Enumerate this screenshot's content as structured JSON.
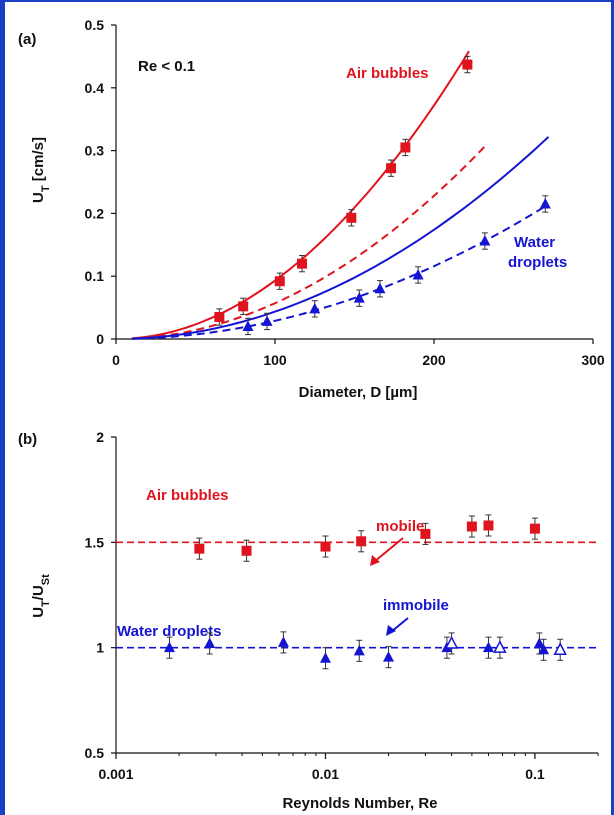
{
  "colors": {
    "red": "#e0141e",
    "blue": "#1414d2",
    "axis": "#111111",
    "frame": "#1a3fc4"
  },
  "chart_data": [
    {
      "panel": "(a)",
      "type": "scatter",
      "xlabel": "Diameter, D [µm]",
      "ylabel": "U",
      "ylabel_sub": "T",
      "ylabel_unit": " [cm/s]",
      "xlim": [
        0,
        300
      ],
      "ylim": [
        0,
        0.5
      ],
      "xticks": [
        0,
        100,
        200,
        300
      ],
      "yticks": [
        0,
        0.1,
        0.2,
        0.3,
        0.4,
        0.5
      ],
      "xtick_labels": [
        "0",
        "100",
        "200",
        "300"
      ],
      "ytick_labels": [
        "0",
        "0.1",
        "0.2",
        "0.3",
        "0.4",
        "0.5"
      ],
      "annotation": "Re < 0.1",
      "series": [
        {
          "name": "Air bubbles",
          "color": "red",
          "marker": "square",
          "x": [
            65,
            80,
            103,
            117,
            148,
            173,
            182,
            221
          ],
          "y": [
            0.035,
            0.052,
            0.092,
            0.12,
            0.193,
            0.272,
            0.305,
            0.437
          ],
          "err": [
            0.013,
            0.013,
            0.013,
            0.013,
            0.013,
            0.013,
            0.013,
            0.013
          ]
        },
        {
          "name": "Water droplets",
          "name_lines": [
            "Water",
            "droplets"
          ],
          "color": "blue",
          "marker": "triangle",
          "x": [
            83,
            95,
            125,
            153,
            166,
            190,
            232,
            270
          ],
          "y": [
            0.02,
            0.028,
            0.048,
            0.065,
            0.08,
            0.102,
            0.156,
            0.215
          ],
          "err": [
            0.013,
            0.013,
            0.013,
            0.013,
            0.013,
            0.013,
            0.013,
            0.013
          ]
        }
      ],
      "curves": [
        {
          "color": "red",
          "dash": false,
          "x_range": [
            10,
            222
          ],
          "coef": 9.3e-06
        },
        {
          "color": "red",
          "dash": true,
          "x_range": [
            10,
            232
          ],
          "coef": 5.7e-06
        },
        {
          "color": "blue",
          "dash": false,
          "x_range": [
            10,
            272
          ],
          "coef": 4.35e-06
        },
        {
          "color": "blue",
          "dash": true,
          "x_range": [
            10,
            272
          ],
          "coef": 2.9e-06
        }
      ]
    },
    {
      "panel": "(b)",
      "type": "scatter",
      "xlabel": "Reynolds Number, Re",
      "ylabel": "U",
      "ylabel_sub": "T",
      "ylabel_mid": "/U",
      "ylabel_sub2": "St",
      "x_scale": "log",
      "xlim": [
        0.001,
        0.2
      ],
      "ylim": [
        0.5,
        2
      ],
      "xticks": [
        0.001,
        0.01,
        0.1
      ],
      "yticks": [
        0.5,
        1,
        1.5,
        2
      ],
      "xtick_labels": [
        "0.001",
        "0.01",
        "0.1"
      ],
      "ytick_labels": [
        "0.5",
        "1",
        "1.5",
        "2"
      ],
      "reference_lines": [
        {
          "y": 1.5,
          "color": "red",
          "label": "mobile"
        },
        {
          "y": 1.0,
          "color": "blue",
          "label": "immobile"
        }
      ],
      "series": [
        {
          "name": "Air bubbles",
          "color": "red",
          "marker": "square",
          "x": [
            0.0025,
            0.0042,
            0.01,
            0.0148,
            0.03,
            0.05,
            0.06,
            0.1
          ],
          "y": [
            1.47,
            1.46,
            1.48,
            1.505,
            1.54,
            1.575,
            1.58,
            1.565
          ],
          "err": [
            0.05,
            0.05,
            0.05,
            0.05,
            0.05,
            0.05,
            0.05,
            0.05
          ]
        },
        {
          "name": "Water droplets",
          "color": "blue",
          "marker": "triangle",
          "x": [
            0.0018,
            0.0028,
            0.0063,
            0.01,
            0.0145,
            0.02,
            0.038,
            0.06,
            0.105,
            0.11
          ],
          "y": [
            1.0,
            1.02,
            1.025,
            0.95,
            0.985,
            0.955,
            1.0,
            1.0,
            1.02,
            0.99
          ],
          "err": [
            0.05,
            0.05,
            0.05,
            0.05,
            0.05,
            0.05,
            0.05,
            0.05,
            0.05,
            0.05
          ]
        },
        {
          "name": "Water droplets (open)",
          "color": "blue",
          "marker": "triangle-open",
          "x": [
            0.04,
            0.068,
            0.132
          ],
          "y": [
            1.02,
            1.0,
            0.99
          ],
          "err": [
            0.05,
            0.05,
            0.05
          ]
        }
      ]
    }
  ]
}
